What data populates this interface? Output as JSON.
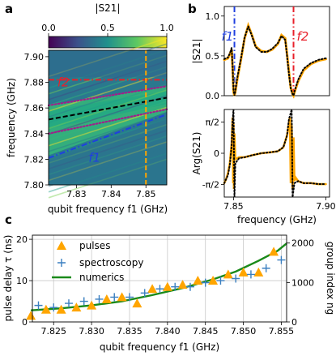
{
  "panel_labels": {
    "a": "a",
    "b": "b",
    "c": "c"
  },
  "chart_data": [
    {
      "id": "a",
      "type": "heatmap",
      "colorbar": {
        "title": "|S21|",
        "ticks": [
          "0.0",
          "0.5",
          "1.0"
        ],
        "range": [
          0,
          1
        ],
        "colormap": "viridis"
      },
      "xlabel": "qubit frequency f1 (GHz)",
      "ylabel": "frequency (GHz)",
      "xlim": [
        7.822,
        7.856
      ],
      "ylim": [
        7.8,
        7.905
      ],
      "xticks": [
        7.83,
        7.84,
        7.85
      ],
      "yticks": [
        7.8,
        7.82,
        7.84,
        7.86,
        7.88,
        7.9
      ],
      "lines": [
        {
          "name": "f2",
          "style": "dash-dot",
          "color": "#e8202a",
          "x": [
            7.822,
            7.856
          ],
          "y": [
            7.882,
            7.882
          ]
        },
        {
          "name": "f1",
          "style": "dash-dot",
          "color": "#1f3fe0",
          "x": [
            7.822,
            7.856
          ],
          "y": [
            7.821,
            7.855
          ]
        },
        {
          "name": "center",
          "style": "dashed",
          "color": "#000000",
          "x": [
            7.822,
            7.856
          ],
          "y": [
            7.851,
            7.868
          ]
        },
        {
          "name": "upper-edge",
          "style": "dotted",
          "color": "#a0208a",
          "x": [
            7.822,
            7.856
          ],
          "y": [
            7.862,
            7.877
          ]
        },
        {
          "name": "lower-edge",
          "style": "dotted",
          "color": "#a0208a",
          "x": [
            7.822,
            7.856
          ],
          "y": [
            7.84,
            7.859
          ]
        },
        {
          "name": "probe",
          "style": "dashed",
          "color": "#ffa500",
          "x": [
            7.85,
            7.85
          ],
          "y": [
            7.8,
            7.905
          ]
        }
      ],
      "annotations": [
        {
          "text": "f2",
          "x": 7.8245,
          "y": 7.877,
          "color": "#e8202a"
        },
        {
          "text": "f1",
          "x": 7.8335,
          "y": 7.818,
          "color": "#1f3fe0"
        }
      ]
    },
    {
      "id": "b-top",
      "type": "line",
      "ylabel": "|S21|",
      "xlim": [
        7.845,
        7.902
      ],
      "ylim": [
        0,
        1.12
      ],
      "yticks": [
        "0.0",
        "0.5",
        "1.0"
      ],
      "markers": [
        {
          "label": "f1",
          "x": 7.8505,
          "color": "#1f3fe0"
        },
        {
          "label": "f2",
          "x": 7.8825,
          "color": "#e8202a"
        }
      ],
      "series": [
        {
          "name": "measured",
          "color": "#ffa500",
          "x": [
            7.845,
            7.847,
            7.848,
            7.849,
            7.8495,
            7.85,
            7.8505,
            7.851,
            7.852,
            7.854,
            7.856,
            7.858,
            7.86,
            7.862,
            7.865,
            7.868,
            7.871,
            7.874,
            7.876,
            7.878,
            7.879,
            7.88,
            7.881,
            7.882,
            7.8825,
            7.883,
            7.885,
            7.888,
            7.892,
            7.896,
            7.9
          ],
          "values": [
            0.45,
            0.47,
            0.52,
            0.58,
            0.35,
            0.05,
            0.0,
            0.05,
            0.2,
            0.45,
            0.72,
            0.88,
            0.76,
            0.62,
            0.56,
            0.55,
            0.58,
            0.65,
            0.76,
            0.72,
            0.52,
            0.3,
            0.1,
            0.02,
            0.0,
            0.04,
            0.18,
            0.32,
            0.4,
            0.44,
            0.46
          ]
        },
        {
          "name": "fit",
          "color": "#000000",
          "x": [
            7.845,
            7.847,
            7.848,
            7.849,
            7.8495,
            7.85,
            7.8505,
            7.851,
            7.852,
            7.854,
            7.856,
            7.858,
            7.86,
            7.862,
            7.865,
            7.868,
            7.871,
            7.874,
            7.876,
            7.878,
            7.879,
            7.88,
            7.881,
            7.882,
            7.8825,
            7.883,
            7.885,
            7.888,
            7.892,
            7.896,
            7.9
          ],
          "values": [
            0.46,
            0.48,
            0.53,
            0.6,
            0.38,
            0.08,
            0.0,
            0.06,
            0.22,
            0.46,
            0.73,
            0.87,
            0.75,
            0.61,
            0.55,
            0.55,
            0.59,
            0.66,
            0.75,
            0.7,
            0.5,
            0.28,
            0.09,
            0.02,
            0.0,
            0.05,
            0.2,
            0.34,
            0.41,
            0.45,
            0.47
          ]
        }
      ]
    },
    {
      "id": "b-bottom",
      "type": "line",
      "ylabel": "Arg(S21)",
      "xlabel": "frequency (GHz)",
      "xlim": [
        7.845,
        7.902
      ],
      "ylim": [
        -2.2,
        2.2
      ],
      "xticks": [
        "7.85",
        "7.90"
      ],
      "yticks": [
        "π/2",
        "0",
        "-π/2"
      ],
      "series": [
        {
          "name": "measured",
          "color": "#ffa500",
          "x": [
            7.845,
            7.846,
            7.847,
            7.848,
            7.849,
            7.8495,
            7.8498,
            7.85,
            7.8502,
            7.8505,
            7.851,
            7.853,
            7.856,
            7.86,
            7.865,
            7.87,
            7.874,
            7.877,
            7.879,
            7.8805,
            7.881,
            7.8815,
            7.882,
            7.8825,
            7.883,
            7.8835,
            7.885,
            7.888,
            7.892,
            7.896,
            7.9
          ],
          "values": [
            -1.5,
            -1.3,
            -1.0,
            -0.5,
            0.5,
            1.8,
            -1.5,
            1.5,
            -1.8,
            1.0,
            -0.3,
            -0.2,
            -0.2,
            -0.1,
            0.0,
            0.05,
            0.1,
            0.3,
            0.9,
            1.8,
            -1.5,
            1.4,
            -1.8,
            0.8,
            -1.4,
            -1.2,
            -1.4,
            -1.5,
            -1.5,
            -1.55,
            -1.55
          ]
        },
        {
          "name": "fit",
          "color": "#000000",
          "x": [
            7.845,
            7.847,
            7.848,
            7.849,
            7.8495,
            7.85,
            7.8505,
            7.851,
            7.853,
            7.856,
            7.86,
            7.865,
            7.87,
            7.874,
            7.877,
            7.879,
            7.88,
            7.8815,
            7.882,
            7.883,
            7.885,
            7.888,
            7.892,
            7.896,
            7.9
          ],
          "values": [
            -1.5,
            -1.1,
            -0.6,
            0.4,
            1.6,
            2.2,
            -2.2,
            -0.5,
            -0.25,
            -0.2,
            -0.1,
            0.0,
            0.05,
            0.1,
            0.3,
            0.9,
            1.7,
            2.2,
            -2.2,
            -1.5,
            -1.4,
            -1.5,
            -1.5,
            -1.55,
            -1.55
          ]
        }
      ]
    },
    {
      "id": "c",
      "type": "scatter",
      "xlabel": "qubit frequency f1 (GHz)",
      "ylabel": "pulse delay τ (ns)",
      "y2label": "group index ng",
      "xlim": [
        7.8222,
        7.8557
      ],
      "ylim": [
        0,
        21
      ],
      "y2lim": [
        0,
        2200
      ],
      "xticks": [
        "7.825",
        "7.830",
        "7.835",
        "7.840",
        "7.845",
        "7.850",
        "7.855"
      ],
      "yticks": [
        "0",
        "10",
        "20"
      ],
      "y2ticks": [
        "0",
        "1000",
        "2000"
      ],
      "grid": true,
      "legend": "top-left",
      "series": [
        {
          "name": "pulses",
          "marker": "triangle",
          "color": "#ffa500",
          "x": [
            7.822,
            7.824,
            7.826,
            7.828,
            7.83,
            7.832,
            7.834,
            7.836,
            7.838,
            7.84,
            7.842,
            7.844,
            7.846,
            7.848,
            7.85,
            7.852,
            7.854
          ],
          "values": [
            1.5,
            3.0,
            3.0,
            3.5,
            4.0,
            5.5,
            6.0,
            4.5,
            8.0,
            8.5,
            9.0,
            10.0,
            10.0,
            11.5,
            12.0,
            12.0,
            17.0
          ]
        },
        {
          "name": "spectroscopy",
          "marker": "plus",
          "color": "#3a7fc0",
          "x": [
            7.823,
            7.825,
            7.827,
            7.829,
            7.831,
            7.833,
            7.835,
            7.837,
            7.839,
            7.841,
            7.843,
            7.845,
            7.847,
            7.849,
            7.851,
            7.853,
            7.855
          ],
          "values": [
            4.0,
            3.5,
            4.5,
            5.0,
            5.5,
            6.0,
            6.0,
            7.0,
            8.0,
            8.5,
            8.5,
            9.5,
            10.0,
            10.5,
            11.5,
            13.0,
            15.0
          ]
        },
        {
          "name": "numerics",
          "marker": "line",
          "color": "#1a8a1a",
          "x": [
            7.822,
            7.826,
            7.83,
            7.834,
            7.838,
            7.842,
            7.846,
            7.849,
            7.852,
            7.8545,
            7.8557
          ],
          "values": [
            2.8,
            3.3,
            4.0,
            5.0,
            6.5,
            8.2,
            10.3,
            12.2,
            14.8,
            17.2,
            19.0
          ]
        }
      ]
    }
  ]
}
